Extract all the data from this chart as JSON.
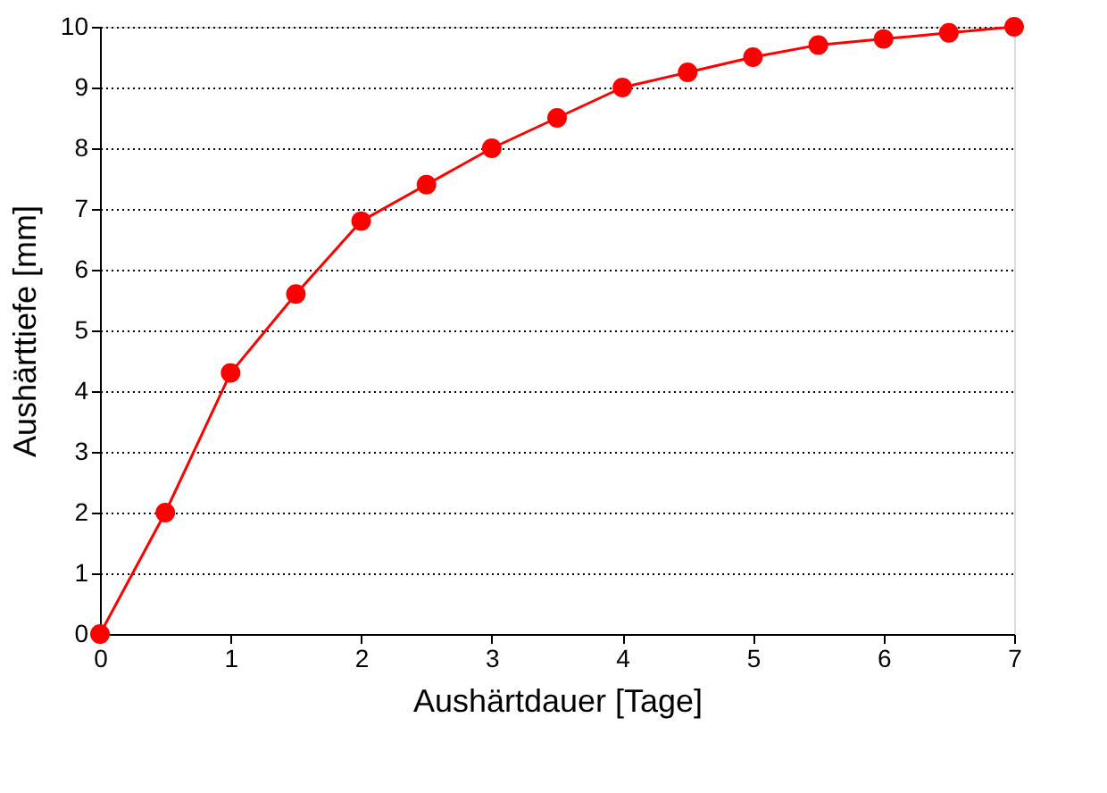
{
  "chart_data": {
    "type": "line",
    "xlabel": "Aushärtdauer [Tage]",
    "ylabel": "Aushärttiefe [mm]",
    "x": [
      0,
      0.5,
      1,
      1.5,
      2,
      2.5,
      3,
      3.5,
      4,
      4.5,
      5,
      5.5,
      6,
      6.5,
      7
    ],
    "series": [
      {
        "color": "#ff0000",
        "values": [
          0,
          2,
          4.3,
          5.6,
          6.8,
          7.4,
          8,
          8.5,
          9,
          9.25,
          9.5,
          9.7,
          9.8,
          9.9,
          10
        ]
      }
    ],
    "xlim": [
      0,
      7
    ],
    "xticks": [
      0,
      1,
      2,
      3,
      4,
      5,
      6,
      7
    ],
    "ylim": [
      0,
      10
    ],
    "yticks": [
      0,
      1,
      2,
      3,
      4,
      5,
      6,
      7,
      8,
      9,
      10
    ],
    "grid": "y",
    "marker": "circle",
    "line_style": "solid",
    "legend": false
  }
}
